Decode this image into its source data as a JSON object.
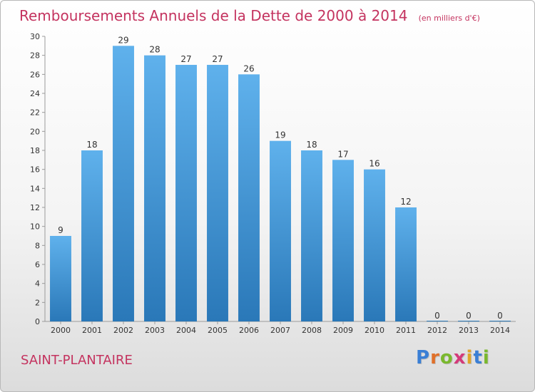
{
  "chart_data": {
    "type": "bar",
    "title": "Remboursements Annuels de la Dette de 2000 à 2014",
    "title_unit": "(en milliers d'€)",
    "categories": [
      "2000",
      "2001",
      "2002",
      "2003",
      "2004",
      "2005",
      "2006",
      "2007",
      "2008",
      "2009",
      "2010",
      "2011",
      "2012",
      "2013",
      "2014"
    ],
    "values": [
      9,
      18,
      29,
      28,
      27,
      27,
      26,
      19,
      18,
      17,
      16,
      12,
      0,
      0,
      0
    ],
    "ylim": [
      0,
      30
    ],
    "yticks": [
      0,
      2,
      4,
      6,
      8,
      10,
      12,
      14,
      16,
      18,
      20,
      22,
      24,
      26,
      28,
      30
    ],
    "grid": false,
    "bar_color": "#3a8fd0"
  },
  "footer": {
    "commune": "SAINT-PLANTAIRE",
    "logo_letters": [
      "P",
      "r",
      "o",
      "x",
      "i",
      "t",
      "i"
    ],
    "logo_colors": [
      "#3a7fd5",
      "#e0702a",
      "#7ab82e",
      "#d43a7a",
      "#e0a52a",
      "#3a7fd5",
      "#7ab82e"
    ]
  }
}
